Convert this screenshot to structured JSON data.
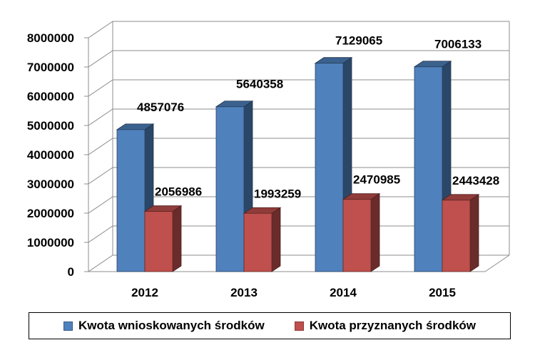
{
  "chart_data": {
    "type": "bar",
    "categories": [
      "2012",
      "2013",
      "2014",
      "2015"
    ],
    "series": [
      {
        "name": "Kwota wnioskowanych środków",
        "values": [
          4857076,
          5640358,
          7129065,
          7006133
        ],
        "color": "#4F81BD"
      },
      {
        "name": "Kwota przyznanych środków",
        "values": [
          2056986,
          1993259,
          2470985,
          2443428
        ],
        "color": "#C0504D"
      }
    ],
    "ylim": [
      0,
      8000000
    ],
    "yticks": [
      0,
      1000000,
      2000000,
      3000000,
      4000000,
      5000000,
      6000000,
      7000000,
      8000000
    ],
    "ytick_labels": [
      "0",
      "1000000",
      "2000000",
      "3000000",
      "4000000",
      "5000000",
      "6000000",
      "7000000",
      "8000000"
    ],
    "data_labels": {
      "s0": [
        "4857076",
        "5640358",
        "7129065",
        "7006133"
      ],
      "s1": [
        "2056986",
        "1993259",
        "2470985",
        "2443428"
      ]
    },
    "grid": true,
    "legend_position": "bottom",
    "style": "3d-column"
  }
}
